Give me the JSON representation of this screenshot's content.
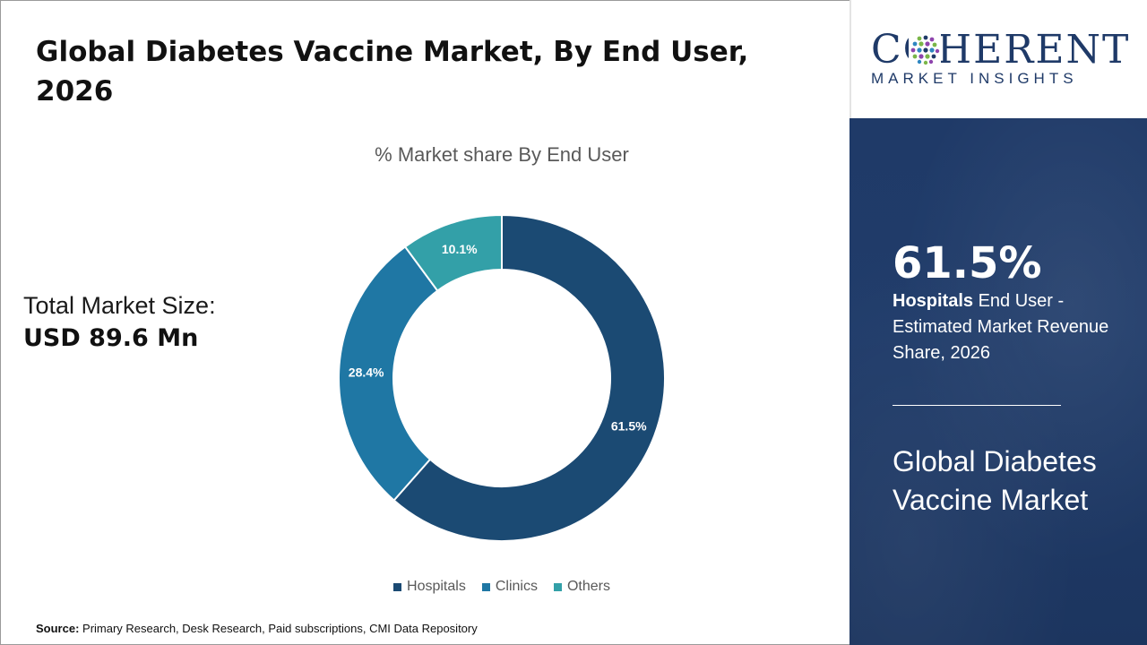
{
  "title": "Global Diabetes Vaccine Market, By End User, 2026",
  "market_size": {
    "label": "Total Market Size:",
    "value": "USD 89.6 Mn"
  },
  "source": {
    "label": "Source:",
    "text": "Primary Research, Desk Research, Paid subscriptions, CMI Data Repository"
  },
  "logo": {
    "word": "COHERENT",
    "tagline": "MARKET INSIGHTS"
  },
  "panel": {
    "stat_value": "61.5%",
    "stat_bold": "Hospitals",
    "stat_rest": " End User - Estimated Market Revenue Share, 2026",
    "market_name": "Global Diabetes Vaccine Market"
  },
  "colors": {
    "panel_bg": "#1f3a68",
    "hospitals": "#1b4a73",
    "clinics": "#1f77a4",
    "others": "#33a0a8"
  },
  "chart_data": {
    "type": "pie",
    "donut": true,
    "title": "% Market share By End User",
    "categories": [
      "Hospitals",
      "Clinics",
      "Others"
    ],
    "values": [
      61.5,
      28.4,
      10.1
    ],
    "labels": [
      "61.5%",
      "28.4%",
      "10.1%"
    ],
    "colors": [
      "#1b4a73",
      "#1f77a4",
      "#33a0a8"
    ],
    "legend": "bottom"
  }
}
